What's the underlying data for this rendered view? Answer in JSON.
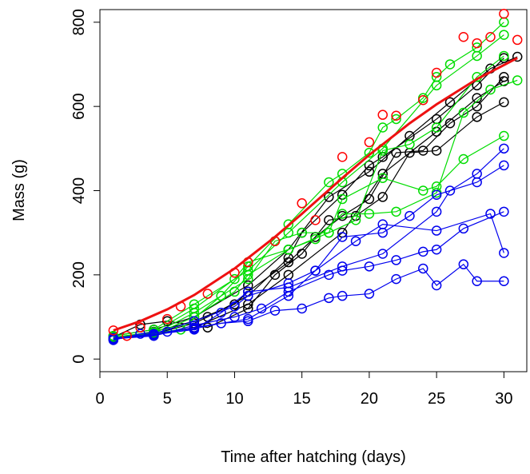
{
  "chart_data": {
    "type": "line",
    "xlabel": "Time after hatching (days)",
    "ylabel": "Mass (g)",
    "xlim": [
      0,
      31.7
    ],
    "ylim": [
      -30,
      830
    ],
    "xticks": [
      0,
      5,
      10,
      15,
      20,
      25,
      30
    ],
    "yticks": [
      0,
      200,
      400,
      600,
      800
    ],
    "series": [
      {
        "color": "#000000",
        "x": [
          1,
          4,
          7,
          8,
          11,
          14,
          15,
          18,
          20,
          21,
          25,
          28,
          30
        ],
        "values": [
          48,
          60,
          85,
          100,
          150,
          240,
          300,
          390,
          460,
          480,
          570,
          650,
          715
        ]
      },
      {
        "color": "#000000",
        "x": [
          1,
          4,
          7,
          10,
          11,
          14,
          16,
          18,
          20,
          22,
          24,
          26,
          28,
          30
        ],
        "values": [
          50,
          65,
          90,
          130,
          160,
          230,
          290,
          340,
          380,
          490,
          495,
          560,
          600,
          670
        ]
      },
      {
        "color": "#000000",
        "x": [
          1,
          3,
          5,
          8,
          11,
          13,
          15,
          17,
          19,
          21,
          23,
          25,
          28,
          30
        ],
        "values": [
          52,
          82,
          90,
          75,
          120,
          200,
          250,
          330,
          340,
          385,
          490,
          495,
          575,
          610
        ]
      },
      {
        "color": "#000000",
        "x": [
          1,
          4,
          7,
          11,
          14,
          17,
          20,
          23,
          26,
          29,
          31
        ],
        "values": [
          55,
          70,
          100,
          175,
          260,
          385,
          445,
          530,
          610,
          690,
          718
        ]
      },
      {
        "color": "#000000",
        "x": [
          1,
          4,
          7,
          11,
          14,
          18,
          21,
          25,
          28,
          30
        ],
        "values": [
          50,
          58,
          75,
          130,
          200,
          300,
          440,
          540,
          620,
          660
        ]
      },
      {
        "color": "#00dd00",
        "x": [
          1,
          4,
          6,
          9,
          11,
          14,
          17,
          18,
          20,
          21,
          22,
          24,
          25,
          26,
          28,
          30
        ],
        "values": [
          50,
          62,
          70,
          150,
          220,
          320,
          420,
          440,
          490,
          550,
          570,
          620,
          670,
          700,
          740,
          800
        ]
      },
      {
        "color": "#00dd00",
        "x": [
          1,
          4,
          7,
          10,
          11,
          14,
          16,
          18,
          20,
          22,
          25,
          27,
          29,
          31
        ],
        "values": [
          48,
          58,
          100,
          160,
          200,
          260,
          285,
          345,
          345,
          350,
          395,
          585,
          640,
          662
        ]
      },
      {
        "color": "#00dd00",
        "x": [
          1,
          4,
          7,
          11,
          13,
          15,
          17,
          18,
          21,
          24,
          25,
          27,
          30
        ],
        "values": [
          50,
          60,
          110,
          190,
          280,
          300,
          300,
          380,
          430,
          400,
          410,
          475,
          530
        ]
      },
      {
        "color": "#00dd00",
        "x": [
          1,
          4,
          7,
          10,
          11,
          14,
          17,
          19,
          21,
          23,
          25,
          28,
          30
        ],
        "values": [
          52,
          64,
          120,
          190,
          230,
          260,
          300,
          330,
          495,
          510,
          550,
          670,
          720
        ]
      },
      {
        "color": "#00dd00",
        "x": [
          1,
          4,
          7,
          11,
          14,
          18,
          21,
          25,
          28,
          30
        ],
        "values": [
          55,
          70,
          130,
          210,
          300,
          420,
          500,
          650,
          720,
          770
        ]
      },
      {
        "color": "#0000ee",
        "x": [
          1,
          3,
          5,
          7,
          9,
          11,
          13,
          15,
          17,
          18,
          20,
          22,
          24,
          25,
          27,
          28,
          30
        ],
        "values": [
          45,
          60,
          65,
          72,
          85,
          90,
          115,
          120,
          145,
          150,
          155,
          190,
          215,
          175,
          225,
          185,
          185
        ]
      },
      {
        "color": "#0000ee",
        "x": [
          1,
          4,
          7,
          10,
          12,
          14,
          17,
          18,
          20,
          22,
          24,
          25,
          27,
          30
        ],
        "values": [
          48,
          55,
          80,
          100,
          120,
          160,
          200,
          210,
          220,
          235,
          255,
          260,
          310,
          350
        ]
      },
      {
        "color": "#0000ee",
        "x": [
          1,
          4,
          7,
          10,
          11,
          14,
          16,
          18,
          21,
          23,
          25,
          28,
          30
        ],
        "values": [
          50,
          60,
          90,
          125,
          150,
          180,
          210,
          290,
          300,
          340,
          390,
          420,
          460
        ]
      },
      {
        "color": "#0000ee",
        "x": [
          1,
          4,
          7,
          9,
          11,
          14,
          18,
          21,
          25,
          26,
          28,
          30
        ],
        "values": [
          47,
          58,
          70,
          110,
          160,
          170,
          220,
          250,
          350,
          400,
          440,
          500
        ]
      },
      {
        "color": "#0000ee",
        "x": [
          1,
          4,
          7,
          11,
          14,
          16,
          19,
          21,
          25,
          29,
          30
        ],
        "values": [
          49,
          56,
          75,
          95,
          150,
          210,
          280,
          320,
          305,
          345,
          252
        ]
      },
      {
        "color": "#ff0000",
        "x": [
          1,
          2,
          3,
          5,
          6,
          8,
          10,
          11,
          13,
          15,
          16,
          18,
          20,
          21,
          22,
          24,
          25,
          27,
          28,
          29,
          30,
          31
        ],
        "values": [
          68,
          55,
          75,
          95,
          125,
          155,
          205,
          230,
          280,
          370,
          330,
          480,
          515,
          580,
          578,
          615,
          680,
          765,
          750,
          765,
          820,
          758
        ],
        "markers": true,
        "line": false
      },
      {
        "color": "#ee1111",
        "x": [
          1,
          3,
          5,
          7,
          10,
          13,
          15,
          18,
          20,
          23,
          25,
          28,
          31
        ],
        "values": [
          68,
          90,
          118,
          152,
          215,
          290,
          345,
          430,
          485,
          560,
          605,
          665,
          715
        ],
        "markers": false,
        "line": true,
        "width": 3
      }
    ]
  }
}
